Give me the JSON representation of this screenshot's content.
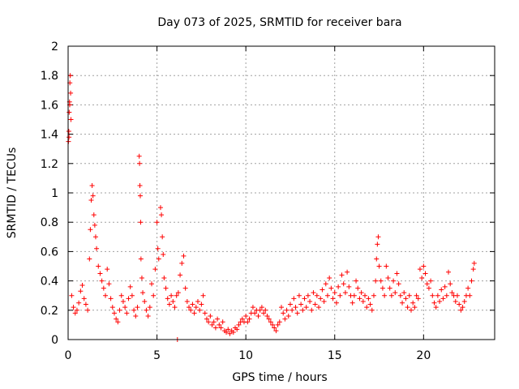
{
  "chart_data": {
    "type": "scatter",
    "title": "Day 073 of 2025, SRMTID for receiver bara",
    "xlabel": "GPS time / hours",
    "ylabel": "SRMTID / TECUs",
    "xlim": [
      0,
      24
    ],
    "ylim": [
      0,
      2
    ],
    "xticks": [
      0,
      5,
      10,
      15,
      20
    ],
    "yticks": [
      0,
      0.2,
      0.4,
      0.6,
      0.8,
      1,
      1.2,
      1.4,
      1.6,
      1.8,
      2
    ],
    "xtick_labels": [
      "0",
      "5",
      "10",
      "15",
      "20"
    ],
    "ytick_labels": [
      "0",
      "0.2",
      "0.4",
      "0.6",
      "0.8",
      "1",
      "1.2",
      "1.4",
      "1.6",
      "1.8",
      "2"
    ],
    "grid": true,
    "marker": "+",
    "color": "#ff0000",
    "series": [
      {
        "name": "SRMTID",
        "points": [
          [
            0.02,
            1.35
          ],
          [
            0.04,
            1.42
          ],
          [
            0.06,
            1.55
          ],
          [
            0.08,
            1.62
          ],
          [
            0.1,
            1.75
          ],
          [
            0.12,
            1.8
          ],
          [
            0.14,
            1.68
          ],
          [
            0.16,
            1.5
          ],
          [
            0.05,
            1.38
          ],
          [
            0.09,
            1.6
          ],
          [
            0.2,
            0.3
          ],
          [
            0.3,
            0.22
          ],
          [
            0.4,
            0.18
          ],
          [
            0.5,
            0.2
          ],
          [
            0.6,
            0.25
          ],
          [
            0.7,
            0.33
          ],
          [
            0.8,
            0.37
          ],
          [
            0.9,
            0.28
          ],
          [
            1.0,
            0.24
          ],
          [
            1.1,
            0.2
          ],
          [
            1.2,
            0.55
          ],
          [
            1.25,
            0.75
          ],
          [
            1.3,
            0.95
          ],
          [
            1.35,
            1.05
          ],
          [
            1.4,
            0.98
          ],
          [
            1.45,
            0.85
          ],
          [
            1.5,
            0.78
          ],
          [
            1.55,
            0.7
          ],
          [
            1.6,
            0.62
          ],
          [
            1.7,
            0.5
          ],
          [
            1.8,
            0.45
          ],
          [
            1.9,
            0.4
          ],
          [
            2.0,
            0.35
          ],
          [
            2.1,
            0.3
          ],
          [
            2.2,
            0.48
          ],
          [
            2.3,
            0.38
          ],
          [
            2.4,
            0.28
          ],
          [
            2.5,
            0.22
          ],
          [
            2.6,
            0.18
          ],
          [
            2.7,
            0.14
          ],
          [
            2.8,
            0.12
          ],
          [
            2.9,
            0.2
          ],
          [
            3.0,
            0.3
          ],
          [
            3.1,
            0.26
          ],
          [
            3.2,
            0.22
          ],
          [
            3.3,
            0.18
          ],
          [
            3.4,
            0.28
          ],
          [
            3.5,
            0.36
          ],
          [
            3.6,
            0.3
          ],
          [
            3.7,
            0.2
          ],
          [
            3.8,
            0.16
          ],
          [
            3.9,
            0.22
          ],
          [
            4.0,
            1.25
          ],
          [
            4.02,
            1.2
          ],
          [
            4.04,
            1.05
          ],
          [
            4.06,
            0.98
          ],
          [
            4.08,
            0.8
          ],
          [
            4.1,
            0.55
          ],
          [
            4.15,
            0.42
          ],
          [
            4.2,
            0.32
          ],
          [
            4.3,
            0.26
          ],
          [
            4.4,
            0.2
          ],
          [
            4.5,
            0.16
          ],
          [
            4.6,
            0.22
          ],
          [
            4.7,
            0.38
          ],
          [
            4.8,
            0.3
          ],
          [
            4.9,
            0.48
          ],
          [
            5.0,
            0.8
          ],
          [
            5.05,
            0.62
          ],
          [
            5.1,
            0.55
          ],
          [
            5.2,
            0.9
          ],
          [
            5.25,
            0.85
          ],
          [
            5.3,
            0.7
          ],
          [
            5.35,
            0.58
          ],
          [
            5.4,
            0.42
          ],
          [
            5.5,
            0.35
          ],
          [
            5.6,
            0.28
          ],
          [
            5.7,
            0.24
          ],
          [
            5.8,
            0.3
          ],
          [
            5.9,
            0.26
          ],
          [
            6.0,
            0.22
          ],
          [
            6.1,
            0.3
          ],
          [
            6.15,
            0.0
          ],
          [
            6.2,
            0.32
          ],
          [
            6.3,
            0.44
          ],
          [
            6.4,
            0.52
          ],
          [
            6.5,
            0.57
          ],
          [
            6.6,
            0.35
          ],
          [
            6.7,
            0.26
          ],
          [
            6.8,
            0.22
          ],
          [
            6.9,
            0.2
          ],
          [
            7.0,
            0.24
          ],
          [
            7.1,
            0.18
          ],
          [
            7.2,
            0.22
          ],
          [
            7.3,
            0.26
          ],
          [
            7.4,
            0.2
          ],
          [
            7.5,
            0.24
          ],
          [
            7.6,
            0.3
          ],
          [
            7.7,
            0.18
          ],
          [
            7.8,
            0.14
          ],
          [
            7.9,
            0.12
          ],
          [
            8.0,
            0.16
          ],
          [
            8.1,
            0.1
          ],
          [
            8.2,
            0.12
          ],
          [
            8.3,
            0.08
          ],
          [
            8.4,
            0.14
          ],
          [
            8.5,
            0.1
          ],
          [
            8.6,
            0.08
          ],
          [
            8.7,
            0.12
          ],
          [
            8.8,
            0.06
          ],
          [
            8.9,
            0.05
          ],
          [
            9.0,
            0.07
          ],
          [
            9.1,
            0.04
          ],
          [
            9.2,
            0.06
          ],
          [
            9.3,
            0.05
          ],
          [
            9.4,
            0.08
          ],
          [
            9.5,
            0.07
          ],
          [
            9.6,
            0.1
          ],
          [
            9.7,
            0.12
          ],
          [
            9.8,
            0.14
          ],
          [
            9.9,
            0.12
          ],
          [
            10.0,
            0.16
          ],
          [
            10.1,
            0.12
          ],
          [
            10.2,
            0.14
          ],
          [
            10.3,
            0.18
          ],
          [
            10.4,
            0.22
          ],
          [
            10.5,
            0.18
          ],
          [
            10.6,
            0.2
          ],
          [
            10.7,
            0.16
          ],
          [
            10.8,
            0.2
          ],
          [
            10.9,
            0.22
          ],
          [
            11.0,
            0.18
          ],
          [
            11.1,
            0.2
          ],
          [
            11.2,
            0.16
          ],
          [
            11.3,
            0.14
          ],
          [
            11.4,
            0.12
          ],
          [
            11.5,
            0.1
          ],
          [
            11.6,
            0.08
          ],
          [
            11.7,
            0.06
          ],
          [
            11.8,
            0.1
          ],
          [
            11.9,
            0.12
          ],
          [
            12.0,
            0.22
          ],
          [
            12.1,
            0.18
          ],
          [
            12.2,
            0.14
          ],
          [
            12.3,
            0.2
          ],
          [
            12.4,
            0.16
          ],
          [
            12.5,
            0.24
          ],
          [
            12.6,
            0.2
          ],
          [
            12.7,
            0.28
          ],
          [
            12.8,
            0.22
          ],
          [
            12.9,
            0.18
          ],
          [
            13.0,
            0.3
          ],
          [
            13.1,
            0.24
          ],
          [
            13.2,
            0.2
          ],
          [
            13.3,
            0.28
          ],
          [
            13.4,
            0.22
          ],
          [
            13.5,
            0.3
          ],
          [
            13.6,
            0.26
          ],
          [
            13.7,
            0.2
          ],
          [
            13.8,
            0.32
          ],
          [
            13.9,
            0.24
          ],
          [
            14.0,
            0.3
          ],
          [
            14.1,
            0.22
          ],
          [
            14.2,
            0.28
          ],
          [
            14.3,
            0.34
          ],
          [
            14.4,
            0.26
          ],
          [
            14.5,
            0.38
          ],
          [
            14.6,
            0.3
          ],
          [
            14.7,
            0.42
          ],
          [
            14.8,
            0.35
          ],
          [
            14.9,
            0.28
          ],
          [
            15.0,
            0.32
          ],
          [
            15.1,
            0.25
          ],
          [
            15.2,
            0.36
          ],
          [
            15.3,
            0.3
          ],
          [
            15.4,
            0.44
          ],
          [
            15.5,
            0.38
          ],
          [
            15.6,
            0.32
          ],
          [
            15.7,
            0.46
          ],
          [
            15.8,
            0.36
          ],
          [
            15.9,
            0.3
          ],
          [
            16.0,
            0.25
          ],
          [
            16.1,
            0.3
          ],
          [
            16.2,
            0.4
          ],
          [
            16.3,
            0.35
          ],
          [
            16.4,
            0.28
          ],
          [
            16.5,
            0.32
          ],
          [
            16.6,
            0.26
          ],
          [
            16.7,
            0.3
          ],
          [
            16.8,
            0.22
          ],
          [
            16.9,
            0.28
          ],
          [
            17.0,
            0.24
          ],
          [
            17.1,
            0.2
          ],
          [
            17.2,
            0.3
          ],
          [
            17.3,
            0.4
          ],
          [
            17.35,
            0.55
          ],
          [
            17.4,
            0.65
          ],
          [
            17.45,
            0.7
          ],
          [
            17.5,
            0.5
          ],
          [
            17.6,
            0.4
          ],
          [
            17.7,
            0.35
          ],
          [
            17.8,
            0.3
          ],
          [
            17.9,
            0.5
          ],
          [
            18.0,
            0.42
          ],
          [
            18.1,
            0.35
          ],
          [
            18.2,
            0.3
          ],
          [
            18.3,
            0.4
          ],
          [
            18.4,
            0.32
          ],
          [
            18.5,
            0.45
          ],
          [
            18.6,
            0.38
          ],
          [
            18.7,
            0.3
          ],
          [
            18.8,
            0.25
          ],
          [
            18.9,
            0.32
          ],
          [
            19.0,
            0.28
          ],
          [
            19.1,
            0.22
          ],
          [
            19.2,
            0.3
          ],
          [
            19.3,
            0.2
          ],
          [
            19.4,
            0.25
          ],
          [
            19.5,
            0.22
          ],
          [
            19.6,
            0.3
          ],
          [
            19.7,
            0.28
          ],
          [
            19.8,
            0.48
          ],
          [
            19.9,
            0.42
          ],
          [
            20.0,
            0.5
          ],
          [
            20.1,
            0.45
          ],
          [
            20.2,
            0.38
          ],
          [
            20.3,
            0.35
          ],
          [
            20.4,
            0.4
          ],
          [
            20.5,
            0.3
          ],
          [
            20.6,
            0.25
          ],
          [
            20.7,
            0.22
          ],
          [
            20.8,
            0.3
          ],
          [
            20.9,
            0.26
          ],
          [
            21.0,
            0.34
          ],
          [
            21.1,
            0.28
          ],
          [
            21.2,
            0.36
          ],
          [
            21.3,
            0.3
          ],
          [
            21.4,
            0.46
          ],
          [
            21.5,
            0.38
          ],
          [
            21.6,
            0.32
          ],
          [
            21.7,
            0.3
          ],
          [
            21.8,
            0.26
          ],
          [
            21.9,
            0.3
          ],
          [
            22.0,
            0.24
          ],
          [
            22.1,
            0.2
          ],
          [
            22.2,
            0.22
          ],
          [
            22.3,
            0.26
          ],
          [
            22.4,
            0.3
          ],
          [
            22.5,
            0.35
          ],
          [
            22.6,
            0.3
          ],
          [
            22.7,
            0.4
          ],
          [
            22.8,
            0.48
          ],
          [
            22.85,
            0.52
          ]
        ]
      }
    ]
  }
}
